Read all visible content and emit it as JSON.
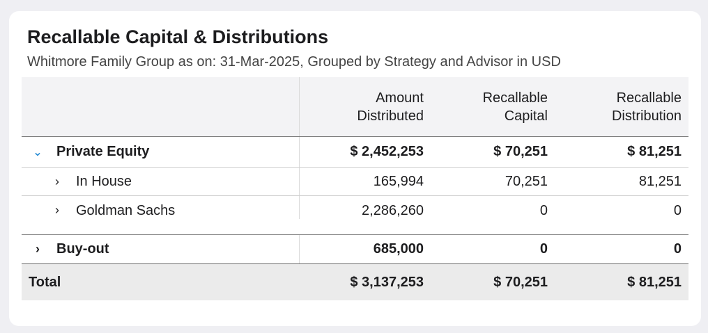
{
  "header": {
    "title": "Recallable Capital & Distributions",
    "subtitle": "Whitmore Family Group as on: 31-Mar-2025, Grouped by Strategy and Advisor in USD"
  },
  "columns": [
    {
      "line1": "Amount",
      "line2": "Distributed"
    },
    {
      "line1": "Recallable",
      "line2": "Capital"
    },
    {
      "line1": "Recallable",
      "line2": "Distribution"
    }
  ],
  "rows": {
    "private_equity": {
      "label": "Private Equity",
      "amount": "$ 2,452,253",
      "rec_capital": "$ 70,251",
      "rec_dist": "$ 81,251"
    },
    "in_house": {
      "label": "In House",
      "amount": "165,994",
      "rec_capital": "70,251",
      "rec_dist": "81,251"
    },
    "goldman_sachs": {
      "label": "Goldman Sachs",
      "amount": "2,286,260",
      "rec_capital": "0",
      "rec_dist": "0"
    },
    "buy_out": {
      "label": "Buy-out",
      "amount": "685,000",
      "rec_capital": "0",
      "rec_dist": "0"
    }
  },
  "total": {
    "label": "Total",
    "amount": "$ 3,137,253",
    "rec_capital": "$ 70,251",
    "rec_dist": "$ 81,251"
  },
  "icons": {
    "expanded": "chevron-down-icon",
    "collapsed": "chevron-right-icon",
    "accent": "#2a8dd4"
  }
}
